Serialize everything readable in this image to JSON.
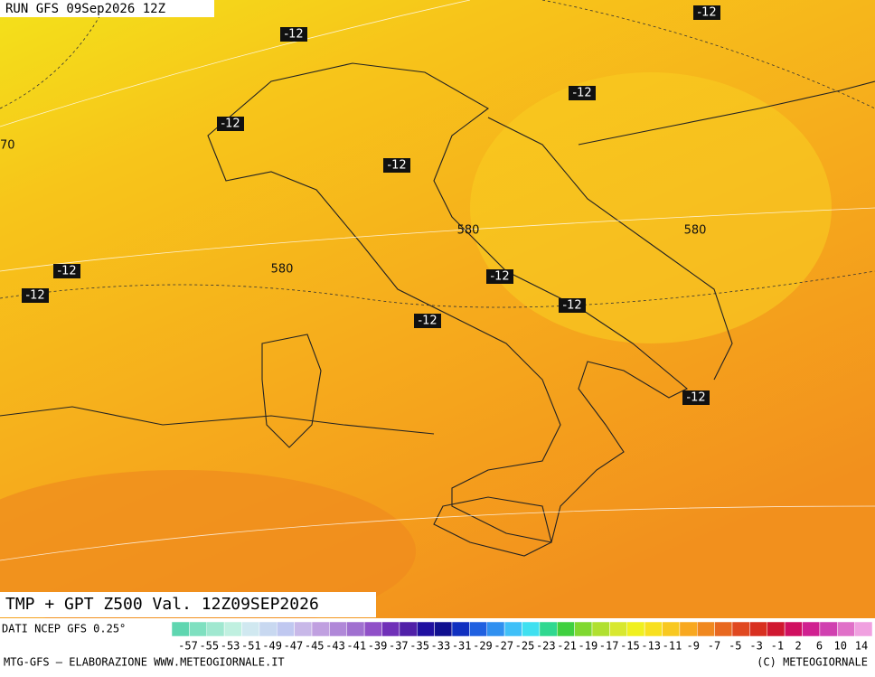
{
  "header": {
    "run": "RUN GFS 09Sep2026 12Z"
  },
  "map": {
    "temp_labels": [
      "-12",
      "-12",
      "-12",
      "-12",
      "-12",
      "-12",
      "-12",
      "-12",
      "-12",
      "-12",
      "-12"
    ],
    "height_labels": [
      "580",
      "580",
      "580"
    ],
    "edge_label": "70"
  },
  "title": "TMP + GPT Z500 Val. 12Z09SEP2026",
  "colorbar": {
    "source": "DATI NCEP GFS 0.25°",
    "labels": [
      "-57",
      "-55",
      "-53",
      "-51",
      "-49",
      "-47",
      "-45",
      "-43",
      "-41",
      "-39",
      "-37",
      "-35",
      "-33",
      "-31",
      "-29",
      "-27",
      "-25",
      "-23",
      "-21",
      "-19",
      "-17",
      "-15",
      "-13",
      "-11",
      "-9",
      "-7",
      "-5",
      "-3",
      "-1",
      "2",
      "6",
      "10",
      "14"
    ]
  },
  "footer": {
    "left": "MTG-GFS — ELABORAZIONE WWW.METEOGIORNALE.IT",
    "right": "(C) METEOGIORNALE"
  }
}
